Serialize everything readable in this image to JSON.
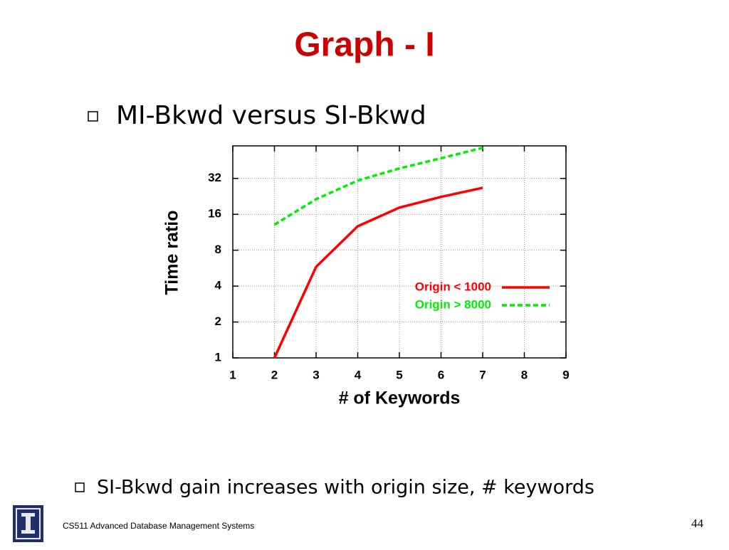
{
  "slide": {
    "title": "Graph - I",
    "bullets": [
      "MI-Bkwd versus SI-Bkwd",
      "SI-Bkwd gain increases with origin size, # keywords"
    ],
    "footer": "CS511 Advanced Database Management Systems",
    "page_number": "44"
  },
  "chart_data": {
    "type": "line",
    "xlabel": "# of Keywords",
    "ylabel": "Time ratio",
    "x": [
      2,
      3,
      4,
      5,
      6,
      7
    ],
    "series": [
      {
        "name": "Origin < 1000",
        "color": "#ff0000",
        "dash": "solid",
        "values": [
          1,
          5.8,
          12.7,
          18.2,
          22.4,
          26.7
        ]
      },
      {
        "name": "Origin > 8000",
        "color": "#00ee00",
        "dash": "dashed",
        "values": [
          13.1,
          21.4,
          30.7,
          38.8,
          47.2,
          57.8
        ]
      }
    ],
    "xlim": [
      1,
      9
    ],
    "xticks": [
      1,
      2,
      3,
      4,
      5,
      6,
      7,
      8,
      9
    ],
    "ylim": [
      1,
      60
    ],
    "yticks": [
      1,
      2,
      4,
      8,
      16,
      32
    ],
    "ylog": true,
    "grid": true,
    "legend": "right"
  }
}
